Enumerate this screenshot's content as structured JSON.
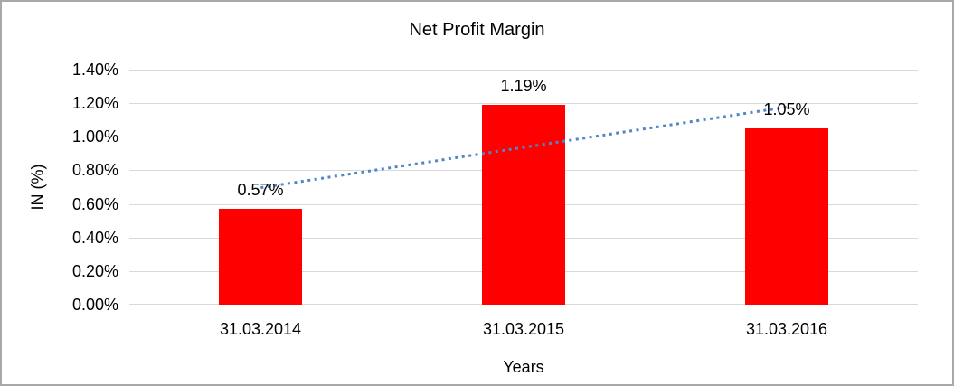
{
  "chart_data": {
    "type": "bar",
    "title": "Net Profit Margin",
    "xlabel": "Years",
    "ylabel": "IN (%)",
    "categories": [
      "31.03.2014",
      "31.03.2015",
      "31.03.2016"
    ],
    "values": [
      0.57,
      1.19,
      1.05
    ],
    "data_labels": [
      "0.57%",
      "1.19%",
      "1.05%"
    ],
    "y_ticks": [
      "0.00%",
      "0.20%",
      "0.40%",
      "0.60%",
      "0.80%",
      "1.00%",
      "1.20%",
      "1.40%"
    ],
    "ylim": [
      0,
      1.4
    ],
    "grid": true,
    "legend": "none",
    "bar_color": "#ff0000",
    "gridline_color": "#d9d9d9",
    "text_color": "#000000",
    "trendline": {
      "type": "linear",
      "style": "dotted",
      "color": "#4e86c8",
      "start_value": 0.6967,
      "end_value": 1.1767
    }
  }
}
